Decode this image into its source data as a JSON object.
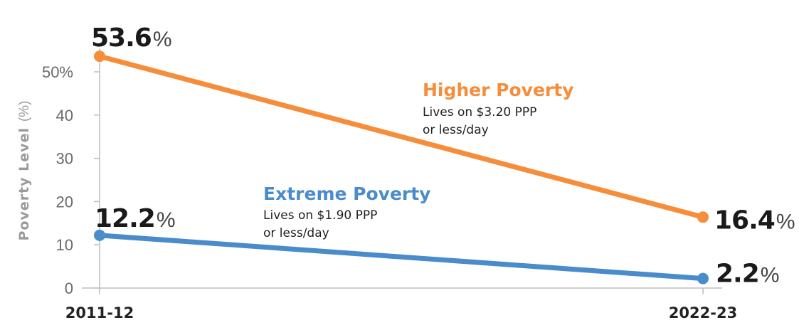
{
  "chart_data": {
    "type": "line",
    "categories": [
      "2011-12",
      "2022-23"
    ],
    "ylabel": "Poverty Level",
    "ylabel_unit": "(%)",
    "ylim": [
      0,
      55
    ],
    "y_ticks": [
      {
        "value": 0,
        "label": "0"
      },
      {
        "value": 10,
        "label": "10"
      },
      {
        "value": 20,
        "label": "20"
      },
      {
        "value": 30,
        "label": "30"
      },
      {
        "value": 40,
        "label": "40"
      },
      {
        "value": 50,
        "label": "50%"
      }
    ],
    "grid": false,
    "series": [
      {
        "name": "Higher Poverty",
        "description_lines": [
          "Lives on $3.20 PPP",
          "or less/day"
        ],
        "color": "#f58d3a",
        "values": [
          53.6,
          16.4
        ],
        "value_labels": [
          "53.6",
          "16.4"
        ],
        "unit": "%"
      },
      {
        "name": "Extreme Poverty",
        "description_lines": [
          "Lives on $1.90 PPP",
          "or less/day"
        ],
        "color": "#4a8ccb",
        "values": [
          12.2,
          2.2
        ],
        "value_labels": [
          "12.2",
          "2.2"
        ],
        "unit": "%"
      }
    ]
  }
}
